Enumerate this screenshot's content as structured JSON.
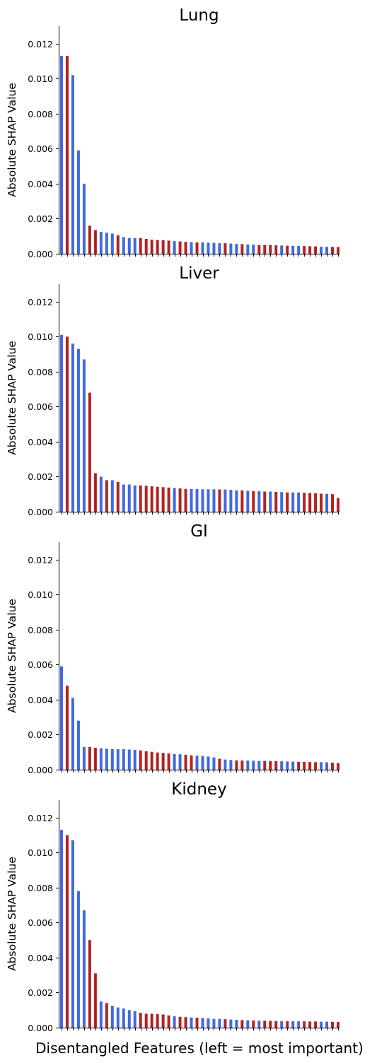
{
  "colors": {
    "blue": "#4169E1",
    "red": "#B22222"
  },
  "chart_data": [
    {
      "type": "bar",
      "title": "Lung",
      "ylabel": "Absolute SHAP Value",
      "xlabel": "",
      "ylim": [
        0,
        0.013
      ],
      "yticks": [
        "0.000",
        "0.002",
        "0.004",
        "0.006",
        "0.008",
        "0.010",
        "0.012"
      ],
      "values": [
        0.0113,
        0.0113,
        0.0102,
        0.0059,
        0.004,
        0.0016,
        0.00135,
        0.00125,
        0.0012,
        0.00115,
        0.00105,
        0.00095,
        0.0009,
        0.0009,
        0.0009,
        0.00085,
        0.0008,
        0.00078,
        0.00078,
        0.00075,
        0.00072,
        0.0007,
        0.00068,
        0.00066,
        0.00065,
        0.00065,
        0.00063,
        0.00062,
        0.0006,
        0.0006,
        0.00058,
        0.00056,
        0.00055,
        0.00053,
        0.00052,
        0.0005,
        0.0005,
        0.0005,
        0.00048,
        0.00047,
        0.00046,
        0.00045,
        0.00045,
        0.00044,
        0.00043,
        0.00042,
        0.0004,
        0.0004,
        0.00039,
        0.00038
      ],
      "colors": [
        "blue",
        "red",
        "blue",
        "blue",
        "blue",
        "red",
        "red",
        "blue",
        "blue",
        "blue",
        "red",
        "blue",
        "blue",
        "blue",
        "red",
        "red",
        "red",
        "red",
        "red",
        "red",
        "blue",
        "red",
        "red",
        "blue",
        "red",
        "blue",
        "blue",
        "blue",
        "blue",
        "red",
        "blue",
        "blue",
        "red",
        "blue",
        "blue",
        "red",
        "red",
        "red",
        "red",
        "blue",
        "red",
        "blue",
        "blue",
        "red",
        "red",
        "red",
        "blue",
        "blue",
        "red",
        "red"
      ]
    },
    {
      "type": "bar",
      "title": "Liver",
      "ylabel": "Absolute SHAP Value",
      "xlabel": "",
      "ylim": [
        0,
        0.013
      ],
      "yticks": [
        "0.000",
        "0.002",
        "0.004",
        "0.006",
        "0.008",
        "0.010",
        "0.012"
      ],
      "values": [
        0.0101,
        0.01,
        0.0096,
        0.0093,
        0.0087,
        0.0068,
        0.0022,
        0.002,
        0.0018,
        0.0018,
        0.0017,
        0.00155,
        0.00155,
        0.0015,
        0.0015,
        0.00148,
        0.00145,
        0.00142,
        0.0014,
        0.00138,
        0.00135,
        0.00133,
        0.0013,
        0.0013,
        0.0013,
        0.00128,
        0.00128,
        0.00128,
        0.00127,
        0.00127,
        0.00125,
        0.00122,
        0.00122,
        0.0012,
        0.00118,
        0.00117,
        0.00115,
        0.00115,
        0.00113,
        0.00112,
        0.0011,
        0.0011,
        0.0011,
        0.00108,
        0.00107,
        0.00105,
        0.00103,
        0.00102,
        0.001,
        0.00078
      ],
      "colors": [
        "blue",
        "red",
        "blue",
        "blue",
        "blue",
        "red",
        "red",
        "blue",
        "red",
        "blue",
        "red",
        "blue",
        "blue",
        "blue",
        "red",
        "red",
        "red",
        "red",
        "red",
        "red",
        "blue",
        "red",
        "red",
        "blue",
        "blue",
        "blue",
        "blue",
        "blue",
        "red",
        "blue",
        "blue",
        "blue",
        "red",
        "blue",
        "red",
        "blue",
        "red",
        "blue",
        "red",
        "blue",
        "red",
        "blue",
        "blue",
        "red",
        "red",
        "red",
        "red",
        "blue",
        "red",
        "red"
      ]
    },
    {
      "type": "bar",
      "title": "GI",
      "ylabel": "Absolute SHAP Value",
      "xlabel": "",
      "ylim": [
        0,
        0.013
      ],
      "yticks": [
        "0.000",
        "0.002",
        "0.004",
        "0.006",
        "0.008",
        "0.010",
        "0.012"
      ],
      "values": [
        0.0059,
        0.0048,
        0.0041,
        0.0028,
        0.0013,
        0.0013,
        0.00125,
        0.00122,
        0.0012,
        0.00118,
        0.00117,
        0.00117,
        0.00115,
        0.00113,
        0.0011,
        0.00105,
        0.00102,
        0.00098,
        0.00096,
        0.00093,
        0.0009,
        0.00088,
        0.00085,
        0.00082,
        0.0008,
        0.00078,
        0.00075,
        0.0007,
        0.00062,
        0.00058,
        0.00055,
        0.00053,
        0.00052,
        0.00052,
        0.00051,
        0.0005,
        0.0005,
        0.0005,
        0.00049,
        0.00048,
        0.00047,
        0.00046,
        0.00045,
        0.00045,
        0.00044,
        0.00043,
        0.00043,
        0.00042,
        0.0004,
        0.00038
      ],
      "colors": [
        "blue",
        "red",
        "blue",
        "blue",
        "blue",
        "red",
        "red",
        "blue",
        "blue",
        "blue",
        "blue",
        "blue",
        "blue",
        "blue",
        "red",
        "red",
        "red",
        "red",
        "red",
        "red",
        "blue",
        "blue",
        "red",
        "red",
        "blue",
        "blue",
        "blue",
        "blue",
        "red",
        "blue",
        "blue",
        "red",
        "red",
        "blue",
        "blue",
        "blue",
        "red",
        "red",
        "red",
        "blue",
        "blue",
        "blue",
        "red",
        "red",
        "red",
        "red",
        "blue",
        "blue",
        "red",
        "red"
      ]
    },
    {
      "type": "bar",
      "title": "Kidney",
      "ylabel": "Absolute SHAP Value",
      "xlabel": "Disentangled Features (left = most important)",
      "ylim": [
        0,
        0.013
      ],
      "yticks": [
        "0.000",
        "0.002",
        "0.004",
        "0.006",
        "0.008",
        "0.010",
        "0.012"
      ],
      "values": [
        0.0113,
        0.011,
        0.0107,
        0.0078,
        0.0067,
        0.005,
        0.0031,
        0.0015,
        0.0014,
        0.00125,
        0.00115,
        0.0011,
        0.001,
        0.00095,
        0.00085,
        0.0008,
        0.0008,
        0.00078,
        0.00075,
        0.0007,
        0.00065,
        0.00062,
        0.0006,
        0.00058,
        0.00057,
        0.00055,
        0.00053,
        0.0005,
        0.0005,
        0.00048,
        0.00046,
        0.00045,
        0.00043,
        0.00042,
        0.00041,
        0.0004,
        0.0004,
        0.00039,
        0.00038,
        0.00038,
        0.00037,
        0.00037,
        0.00036,
        0.00036,
        0.00035,
        0.00035,
        0.00034,
        0.00034,
        0.00033,
        0.00033
      ],
      "colors": [
        "blue",
        "red",
        "blue",
        "blue",
        "blue",
        "red",
        "red",
        "blue",
        "red",
        "blue",
        "blue",
        "blue",
        "blue",
        "blue",
        "red",
        "red",
        "red",
        "red",
        "red",
        "red",
        "blue",
        "red",
        "red",
        "blue",
        "red",
        "blue",
        "blue",
        "blue",
        "blue",
        "red",
        "blue",
        "blue",
        "red",
        "blue",
        "red",
        "blue",
        "red",
        "red",
        "red",
        "blue",
        "red",
        "blue",
        "blue",
        "red",
        "red",
        "red",
        "blue",
        "blue",
        "red",
        "red"
      ]
    }
  ]
}
